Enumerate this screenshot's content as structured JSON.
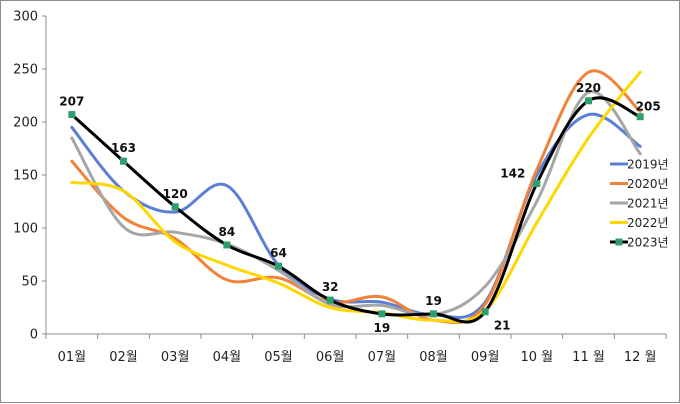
{
  "chart_data": {
    "type": "line",
    "title": "",
    "xlabel": "",
    "ylabel": "",
    "ylim": [
      0,
      300
    ],
    "yticks": [
      0,
      50,
      100,
      150,
      200,
      250,
      300
    ],
    "grid": false,
    "legend_position": "right",
    "categories": [
      "01월",
      "02월",
      "03월",
      "04월",
      "05월",
      "06월",
      "07월",
      "08월",
      "09월",
      "10 월",
      "11 월",
      "12 월"
    ],
    "series": [
      {
        "name": "2019년",
        "color": "#5b7fd4",
        "values": [
          195,
          135,
          115,
          140,
          65,
          33,
          30,
          18,
          30,
          150,
          207,
          177
        ]
      },
      {
        "name": "2020년",
        "color": "#f0823a",
        "values": [
          163,
          110,
          90,
          51,
          53,
          30,
          35,
          13,
          28,
          155,
          247,
          210
        ]
      },
      {
        "name": "2021년",
        "color": "#a6a6a6",
        "values": [
          185,
          101,
          96,
          85,
          60,
          28,
          27,
          18,
          45,
          125,
          228,
          170
        ]
      },
      {
        "name": "2022년",
        "color": "#ffd700",
        "values": [
          143,
          135,
          87,
          65,
          48,
          25,
          20,
          13,
          22,
          105,
          185,
          247
        ]
      },
      {
        "name": "2023년",
        "color": "#000000",
        "values": [
          207,
          163,
          120,
          84,
          64,
          32,
          19,
          19,
          21,
          142,
          220,
          205
        ],
        "labels": [
          "207",
          "163",
          "120",
          "84",
          "64",
          "32",
          "19",
          "19",
          "21",
          "142",
          "220",
          "205"
        ]
      }
    ]
  }
}
